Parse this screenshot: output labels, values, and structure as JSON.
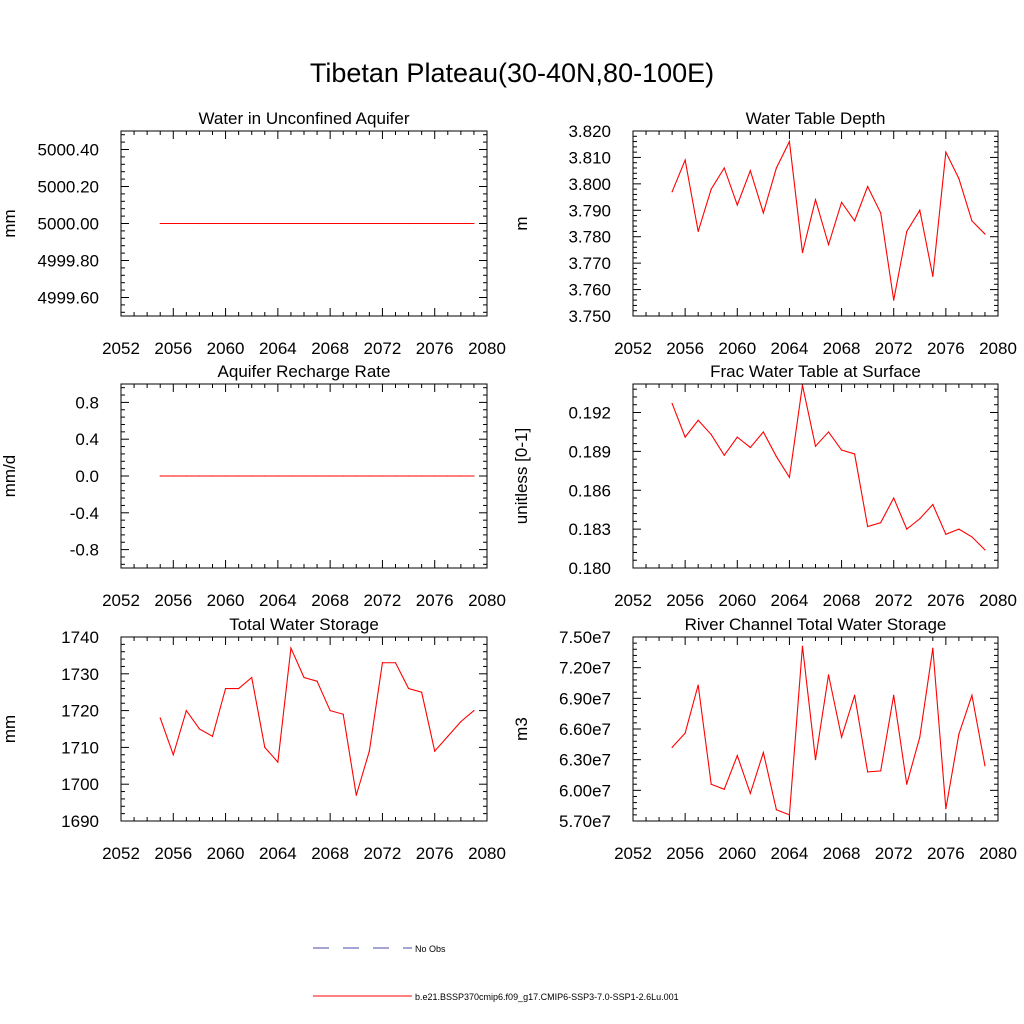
{
  "figure": {
    "title": "Tibetan Plateau(30-40N,80-100E)"
  },
  "legend": {
    "items": [
      {
        "label": "No Obs",
        "color": "#4a4aaa",
        "dashed": true
      },
      {
        "label": "b.e21.BSSP370cmip6.f09_g17.CMIP6-SSP3-7.0-SSP1-2.6Lu.001",
        "color": "#ff0000",
        "dashed": false
      }
    ]
  },
  "chart_data": [
    {
      "type": "line",
      "title": "Water in Unconfined Aquifer",
      "ylabel": "mm",
      "xlim": [
        2052,
        2080
      ],
      "ylim": [
        4999.5,
        5000.5
      ],
      "xticks": [
        "2052",
        "2056",
        "2060",
        "2064",
        "2068",
        "2072",
        "2076",
        "2080"
      ],
      "yticks": [
        {
          "v": 4999.6,
          "label": "4999.60"
        },
        {
          "v": 4999.8,
          "label": "4999.80"
        },
        {
          "v": 5000.0,
          "label": "5000.00"
        },
        {
          "v": 5000.2,
          "label": "5000.20"
        },
        {
          "v": 5000.4,
          "label": "5000.40"
        }
      ],
      "yminor": 0.04,
      "x": [
        2055,
        2056,
        2057,
        2058,
        2059,
        2060,
        2061,
        2062,
        2063,
        2064,
        2065,
        2066,
        2067,
        2068,
        2069,
        2070,
        2071,
        2072,
        2073,
        2074,
        2075,
        2076,
        2077,
        2078,
        2079
      ],
      "series": [
        {
          "color": "#ff0000",
          "values": [
            5000.0,
            5000.0,
            5000.0,
            5000.0,
            5000.0,
            5000.0,
            5000.0,
            5000.0,
            5000.0,
            5000.0,
            5000.0,
            5000.0,
            5000.0,
            5000.0,
            5000.0,
            5000.0,
            5000.0,
            5000.0,
            5000.0,
            5000.0,
            5000.0,
            5000.0,
            5000.0,
            5000.0,
            5000.0
          ]
        }
      ]
    },
    {
      "type": "line",
      "title": "Water Table Depth",
      "ylabel": "m",
      "xlim": [
        2052,
        2080
      ],
      "ylim": [
        3.75,
        3.82
      ],
      "xticks": [
        "2052",
        "2056",
        "2060",
        "2064",
        "2068",
        "2072",
        "2076",
        "2080"
      ],
      "yticks": [
        {
          "v": 3.75,
          "label": "3.750"
        },
        {
          "v": 3.76,
          "label": "3.760"
        },
        {
          "v": 3.77,
          "label": "3.770"
        },
        {
          "v": 3.78,
          "label": "3.780"
        },
        {
          "v": 3.79,
          "label": "3.790"
        },
        {
          "v": 3.8,
          "label": "3.800"
        },
        {
          "v": 3.81,
          "label": "3.810"
        },
        {
          "v": 3.82,
          "label": "3.820"
        }
      ],
      "yminor": 0.002,
      "x": [
        2055,
        2056,
        2057,
        2058,
        2059,
        2060,
        2061,
        2062,
        2063,
        2064,
        2065,
        2066,
        2067,
        2068,
        2069,
        2070,
        2071,
        2072,
        2073,
        2074,
        2075,
        2076,
        2077,
        2078,
        2079
      ],
      "series": [
        {
          "color": "#ff0000",
          "values": [
            3.797,
            3.809,
            3.782,
            3.798,
            3.806,
            3.792,
            3.805,
            3.789,
            3.806,
            3.816,
            3.774,
            3.794,
            3.777,
            3.793,
            3.786,
            3.799,
            3.789,
            3.756,
            3.782,
            3.79,
            3.765,
            3.812,
            3.802,
            3.786,
            3.781
          ]
        }
      ]
    },
    {
      "type": "line",
      "title": "Aquifer Recharge Rate",
      "ylabel": "mm/d",
      "xlim": [
        2052,
        2080
      ],
      "ylim": [
        -1.0,
        1.0
      ],
      "xticks": [
        "2052",
        "2056",
        "2060",
        "2064",
        "2068",
        "2072",
        "2076",
        "2080"
      ],
      "yticks": [
        {
          "v": -0.8,
          "label": "-0.8"
        },
        {
          "v": -0.4,
          "label": "-0.4"
        },
        {
          "v": 0.0,
          "label": "0.0"
        },
        {
          "v": 0.4,
          "label": "0.4"
        },
        {
          "v": 0.8,
          "label": "0.8"
        }
      ],
      "yminor": 0.08,
      "x": [
        2055,
        2056,
        2057,
        2058,
        2059,
        2060,
        2061,
        2062,
        2063,
        2064,
        2065,
        2066,
        2067,
        2068,
        2069,
        2070,
        2071,
        2072,
        2073,
        2074,
        2075,
        2076,
        2077,
        2078,
        2079
      ],
      "series": [
        {
          "color": "#ff0000",
          "values": [
            0,
            0,
            0,
            0,
            0,
            0,
            0,
            0,
            0,
            0,
            0,
            0,
            0,
            0,
            0,
            0,
            0,
            0,
            0,
            0,
            0,
            0,
            0,
            0,
            0
          ]
        }
      ]
    },
    {
      "type": "line",
      "title": "Frac Water Table at Surface",
      "ylabel": "unitless [0-1]",
      "xlim": [
        2052,
        2080
      ],
      "ylim": [
        0.18,
        0.1942
      ],
      "xticks": [
        "2052",
        "2056",
        "2060",
        "2064",
        "2068",
        "2072",
        "2076",
        "2080"
      ],
      "yticks": [
        {
          "v": 0.18,
          "label": "0.180"
        },
        {
          "v": 0.183,
          "label": "0.183"
        },
        {
          "v": 0.186,
          "label": "0.186"
        },
        {
          "v": 0.189,
          "label": "0.189"
        },
        {
          "v": 0.192,
          "label": "0.192"
        }
      ],
      "yminor": 0.0006,
      "x": [
        2055,
        2056,
        2057,
        2058,
        2059,
        2060,
        2061,
        2062,
        2063,
        2064,
        2065,
        2066,
        2067,
        2068,
        2069,
        2070,
        2071,
        2072,
        2073,
        2074,
        2075,
        2076,
        2077,
        2078,
        2079
      ],
      "series": [
        {
          "color": "#ff0000",
          "values": [
            0.1927,
            0.1901,
            0.1914,
            0.1903,
            0.1887,
            0.1901,
            0.1893,
            0.1905,
            0.1886,
            0.187,
            0.1941,
            0.1894,
            0.1905,
            0.1891,
            0.1888,
            0.1832,
            0.1835,
            0.1854,
            0.183,
            0.1838,
            0.1849,
            0.1826,
            0.183,
            0.1824,
            0.1814
          ]
        }
      ]
    },
    {
      "type": "line",
      "title": "Total Water Storage",
      "ylabel": "mm",
      "xlim": [
        2052,
        2080
      ],
      "ylim": [
        1690,
        1740
      ],
      "xticks": [
        "2052",
        "2056",
        "2060",
        "2064",
        "2068",
        "2072",
        "2076",
        "2080"
      ],
      "yticks": [
        {
          "v": 1690,
          "label": "1690"
        },
        {
          "v": 1700,
          "label": "1700"
        },
        {
          "v": 1710,
          "label": "1710"
        },
        {
          "v": 1720,
          "label": "1720"
        },
        {
          "v": 1730,
          "label": "1730"
        },
        {
          "v": 1740,
          "label": "1740"
        }
      ],
      "yminor": 2,
      "x": [
        2055,
        2056,
        2057,
        2058,
        2059,
        2060,
        2061,
        2062,
        2063,
        2064,
        2065,
        2066,
        2067,
        2068,
        2069,
        2070,
        2071,
        2072,
        2073,
        2074,
        2075,
        2076,
        2077,
        2078,
        2079
      ],
      "series": [
        {
          "color": "#ff0000",
          "values": [
            1718,
            1708,
            1720,
            1715,
            1713,
            1726,
            1726,
            1729,
            1710,
            1706,
            1737,
            1729,
            1728,
            1720,
            1719,
            1697,
            1709,
            1733,
            1733,
            1726,
            1725,
            1709,
            1713,
            1717,
            1720
          ]
        }
      ]
    },
    {
      "type": "line",
      "title": "River Channel Total Water Storage",
      "ylabel": "m3",
      "xlim": [
        2052,
        2080
      ],
      "ylim": [
        57000000,
        75000000
      ],
      "xticks": [
        "2052",
        "2056",
        "2060",
        "2064",
        "2068",
        "2072",
        "2076",
        "2080"
      ],
      "yticks": [
        {
          "v": 57000000,
          "label": "5.70e7"
        },
        {
          "v": 60000000,
          "label": "6.00e7"
        },
        {
          "v": 63000000,
          "label": "6.30e7"
        },
        {
          "v": 66000000,
          "label": "6.60e7"
        },
        {
          "v": 69000000,
          "label": "6.90e7"
        },
        {
          "v": 72000000,
          "label": "7.20e7"
        },
        {
          "v": 75000000,
          "label": "7.50e7"
        }
      ],
      "yminor": 600000,
      "x": [
        2055,
        2056,
        2057,
        2058,
        2059,
        2060,
        2061,
        2062,
        2063,
        2064,
        2065,
        2066,
        2067,
        2068,
        2069,
        2070,
        2071,
        2072,
        2073,
        2074,
        2075,
        2076,
        2077,
        2078,
        2079
      ],
      "series": [
        {
          "color": "#ff0000",
          "values": [
            64200000,
            65600000,
            70300000,
            60600000,
            60100000,
            63400000,
            59700000,
            63700000,
            58100000,
            57600000,
            74100000,
            63000000,
            71300000,
            65200000,
            69300000,
            61800000,
            61900000,
            69300000,
            60600000,
            65200000,
            73900000,
            58200000,
            65500000,
            69300000,
            62400000
          ]
        }
      ]
    }
  ]
}
